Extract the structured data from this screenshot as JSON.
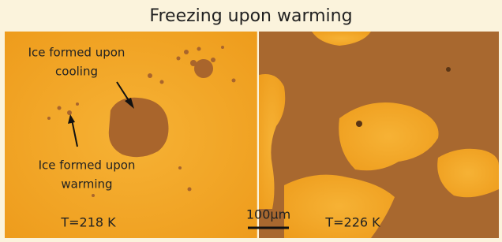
{
  "title": "Freezing upon warming",
  "panels": [
    {
      "temperature": "T=218 K",
      "annotations": [
        {
          "lines": [
            "Ice formed upon",
            "cooling"
          ]
        },
        {
          "lines": [
            "Ice formed upon",
            "warming"
          ]
        }
      ]
    },
    {
      "temperature": "T=226 K"
    }
  ],
  "scale_bar": "100µm"
}
